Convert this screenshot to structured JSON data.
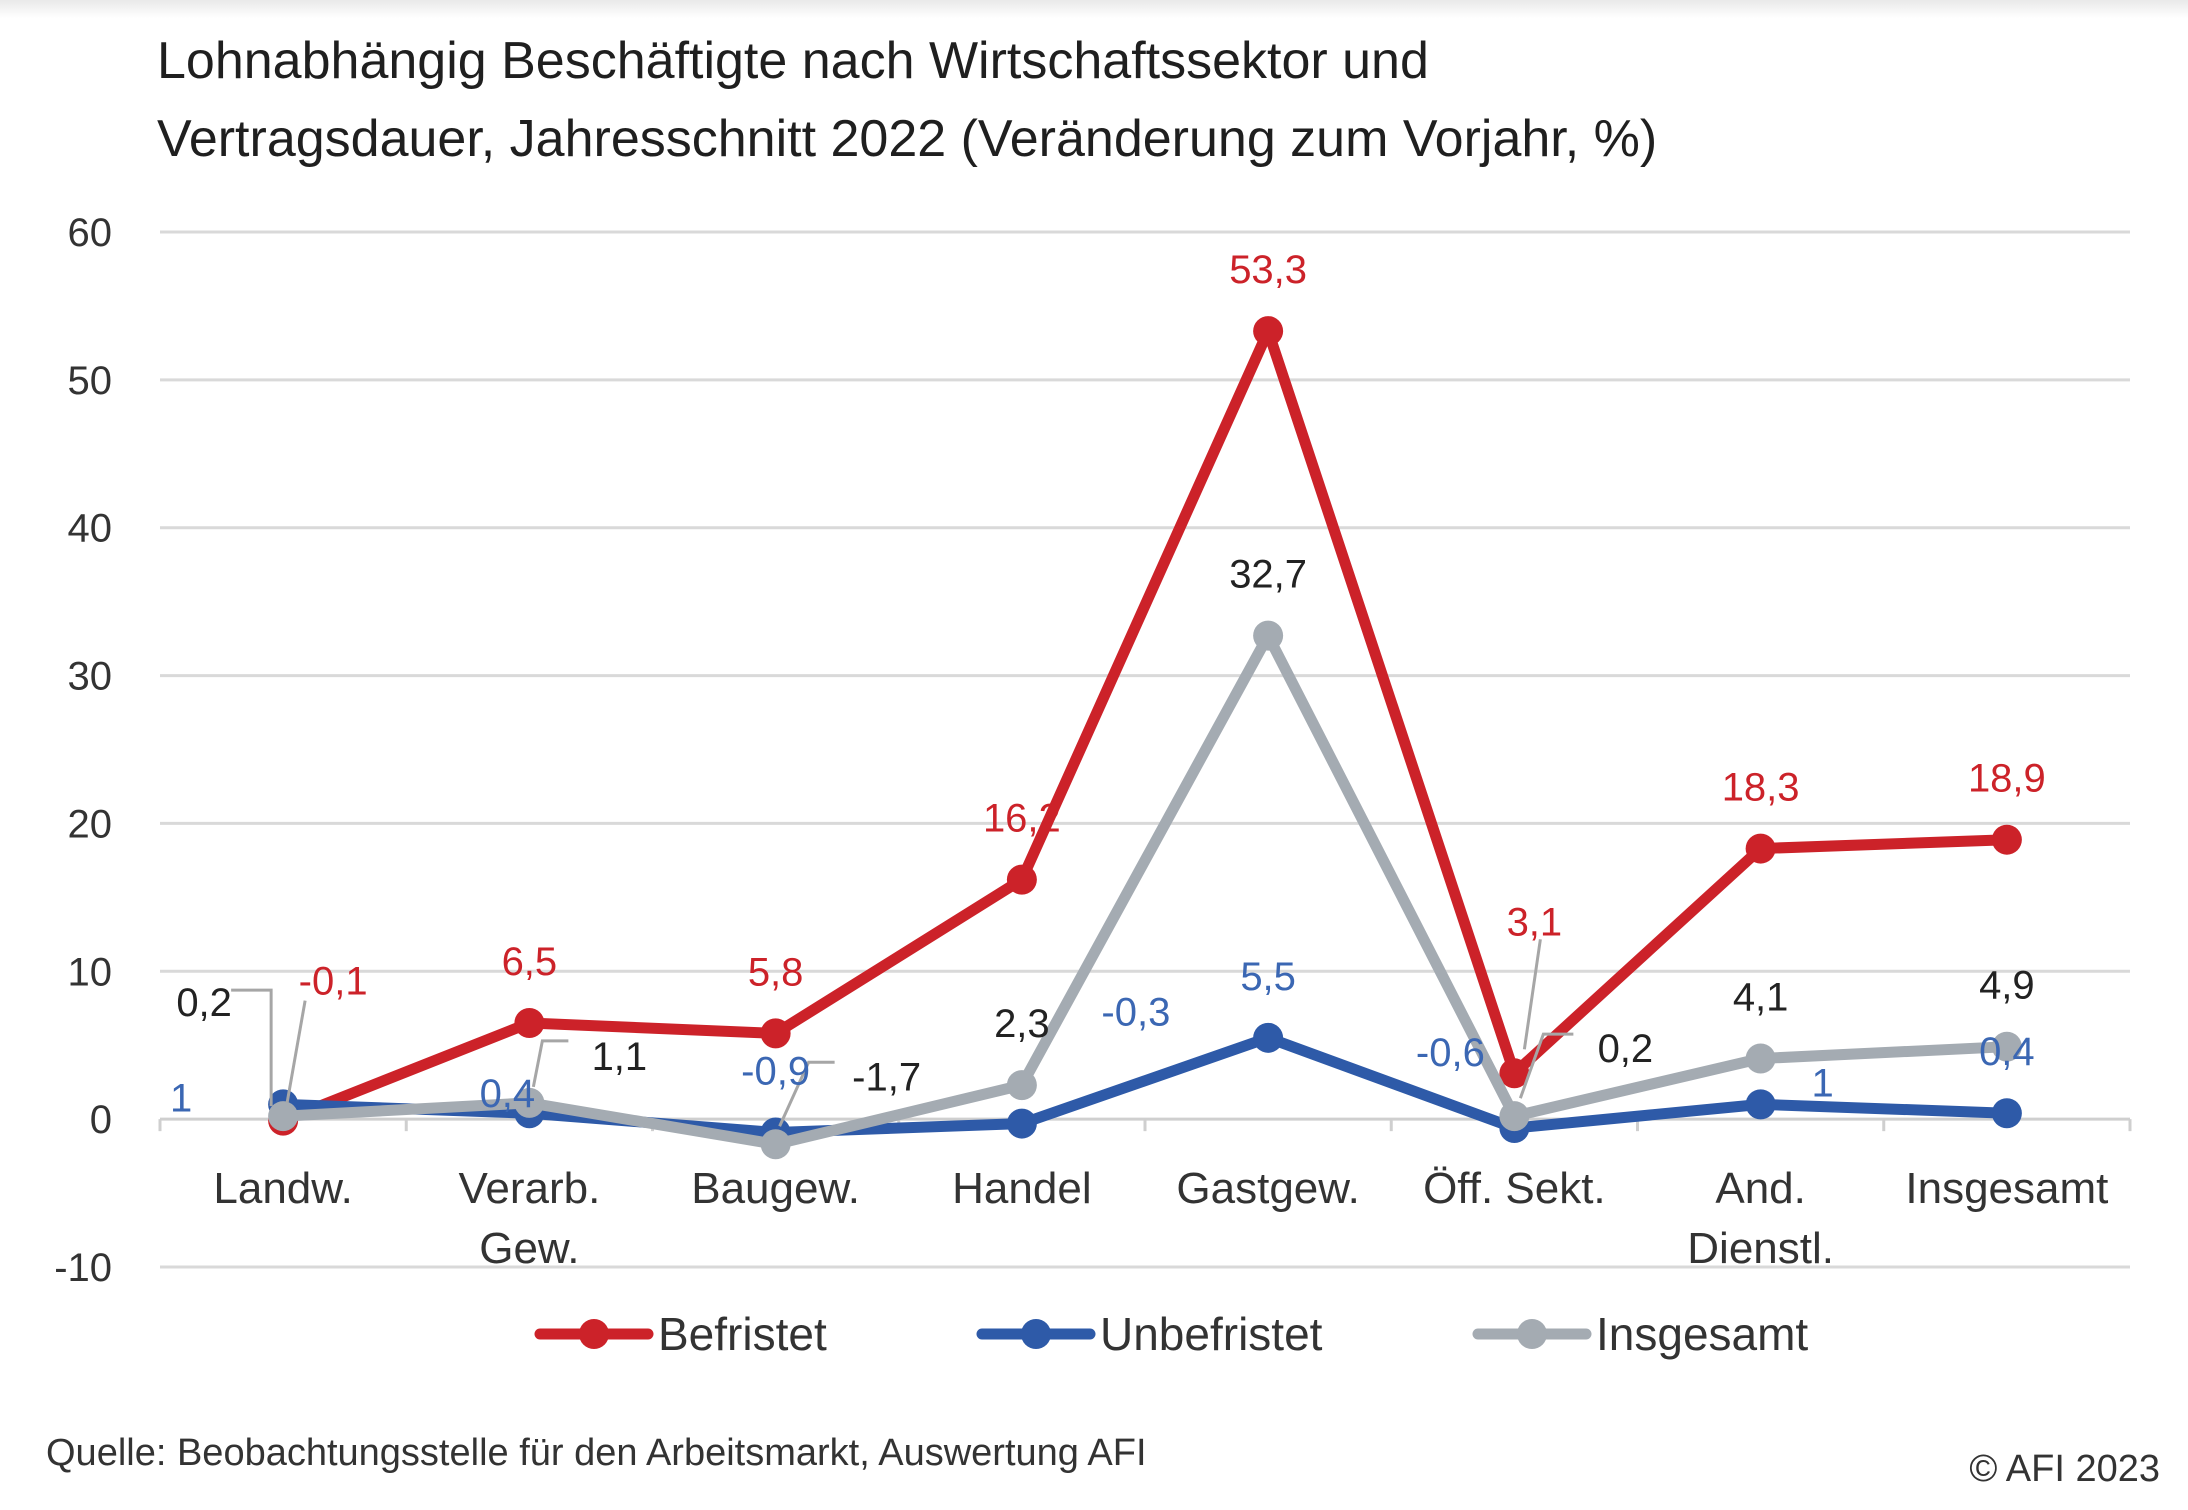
{
  "title_line1": "Lohnabhängig Beschäftigte nach Wirtschaftssektor und",
  "title_line2": "Vertragsdauer, Jahresschnitt 2022 (Veränderung zum Vorjahr, %)",
  "source": "Quelle: Beobachtungsstelle für den Arbeitsmarkt, Auswertung AFI",
  "copyright": "© AFI 2023",
  "chart_data": {
    "type": "line",
    "categories": [
      [
        "Landw."
      ],
      [
        "Verarb.",
        "Gew."
      ],
      [
        "Baugew."
      ],
      [
        "Handel"
      ],
      [
        "Gastgew."
      ],
      [
        "Öff. Sekt."
      ],
      [
        "And.",
        "Dienstl."
      ],
      [
        "Insgesamt"
      ]
    ],
    "ylim": [
      -10,
      60
    ],
    "yticks": [
      -10,
      0,
      10,
      20,
      30,
      40,
      50,
      60
    ],
    "grid": true,
    "legend_position": "bottom",
    "series": [
      {
        "name": "Befristet",
        "color": "#cc2229",
        "values": [
          -0.1,
          6.5,
          5.8,
          16.2,
          53.3,
          3.1,
          18.3,
          18.9
        ],
        "labels": [
          "-0,1",
          "6,5",
          "5,8",
          "16,2",
          "53,3",
          "3,1",
          "18,3",
          "18,9"
        ]
      },
      {
        "name": "Unbefristet",
        "color": "#2e5aa8",
        "values": [
          1,
          0.4,
          -0.9,
          -0.3,
          5.5,
          -0.6,
          1,
          0.4
        ],
        "labels": [
          "1",
          "0,4",
          "-0,9",
          "-0,3",
          "5,5",
          "-0,6",
          "1",
          "0,4"
        ]
      },
      {
        "name": "Insgesamt",
        "color": "#a4abb2",
        "values": [
          0.2,
          1.1,
          -1.7,
          2.3,
          32.7,
          0.2,
          4.1,
          4.9
        ],
        "labels": [
          "0,2",
          "1,1",
          "-1,7",
          "2,3",
          "32,7",
          "0,2",
          "4,1",
          "4,9"
        ]
      }
    ]
  }
}
